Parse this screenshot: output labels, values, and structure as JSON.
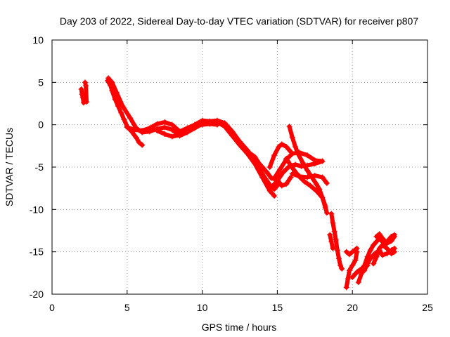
{
  "chart_data": {
    "type": "scatter",
    "title": "Day 203 of 2022, Sidereal Day-to-day VTEC variation (SDTVAR) for receiver p807",
    "xlabel": "GPS time / hours",
    "ylabel": "SDTVAR / TECUs",
    "xlim": [
      0,
      25
    ],
    "ylim": [
      -20,
      10
    ],
    "xticks": [
      "0",
      "5",
      "10",
      "15",
      "20",
      "25"
    ],
    "yticks": [
      "10",
      "5",
      "0",
      "-5",
      "-10",
      "-15",
      "-20"
    ],
    "grid": true,
    "marker": "plus",
    "color": "#ff0000",
    "series": [
      {
        "segments": [
          [
            [
              1.95,
              4.2
            ],
            [
              2.0,
              3.6
            ],
            [
              2.05,
              3.2
            ],
            [
              2.1,
              2.6
            ]
          ],
          [
            [
              2.2,
              5.0
            ],
            [
              2.25,
              4.6
            ],
            [
              2.3,
              2.7
            ]
          ],
          [
            [
              3.7,
              5.2
            ],
            [
              3.9,
              4.6
            ],
            [
              4.0,
              4.0
            ],
            [
              4.2,
              3.0
            ],
            [
              4.4,
              2.2
            ],
            [
              4.6,
              1.4
            ],
            [
              4.8,
              0.6
            ],
            [
              5.0,
              -0.2
            ],
            [
              5.3,
              -0.8
            ],
            [
              5.6,
              -1.5
            ],
            [
              5.8,
              -2.1
            ],
            [
              6.0,
              -2.4
            ]
          ],
          [
            [
              3.75,
              5.5
            ],
            [
              4.0,
              5.0
            ],
            [
              4.3,
              3.8
            ],
            [
              4.7,
              2.2
            ],
            [
              5.2,
              0.8
            ],
            [
              5.6,
              -0.4
            ],
            [
              6.0,
              -0.9
            ],
            [
              6.5,
              -0.8
            ],
            [
              7.0,
              -0.5
            ],
            [
              7.5,
              -0.3
            ],
            [
              8.0,
              -0.6
            ],
            [
              8.5,
              -1.3
            ],
            [
              9.0,
              -0.9
            ],
            [
              9.5,
              -0.4
            ],
            [
              10.0,
              0.1
            ],
            [
              10.5,
              0.4
            ],
            [
              11.0,
              0.3
            ],
            [
              11.5,
              -0.2
            ],
            [
              12.0,
              -1.3
            ],
            [
              12.5,
              -2.4
            ],
            [
              13.0,
              -3.4
            ],
            [
              13.5,
              -4.6
            ],
            [
              14.0,
              -6.2
            ],
            [
              14.5,
              -7.8
            ],
            [
              14.8,
              -8.4
            ]
          ],
          [
            [
              5.0,
              -0.3
            ],
            [
              5.5,
              -0.6
            ],
            [
              6.0,
              -0.7
            ],
            [
              6.5,
              -0.4
            ],
            [
              7.0,
              0.1
            ],
            [
              7.5,
              0.3
            ],
            [
              8.0,
              0.0
            ],
            [
              8.5,
              -0.8
            ],
            [
              9.0,
              -0.4
            ],
            [
              9.5,
              0.0
            ],
            [
              10.0,
              0.5
            ],
            [
              10.5,
              0.4
            ],
            [
              11.0,
              0.5
            ],
            [
              11.5,
              0.2
            ],
            [
              12.0,
              -0.8
            ],
            [
              12.5,
              -2.0
            ],
            [
              13.0,
              -3.0
            ],
            [
              13.5,
              -4.2
            ],
            [
              14.0,
              -5.8
            ],
            [
              14.5,
              -7.1
            ],
            [
              14.8,
              -7.6
            ],
            [
              15.0,
              -7.2
            ]
          ],
          [
            [
              7.0,
              -0.7
            ],
            [
              7.5,
              -1.1
            ],
            [
              8.0,
              -1.4
            ],
            [
              8.5,
              -1.2
            ],
            [
              9.0,
              -0.6
            ],
            [
              9.5,
              -0.2
            ],
            [
              10.0,
              0.0
            ],
            [
              10.5,
              0.1
            ],
            [
              11.0,
              0.0
            ]
          ],
          [
            [
              13.2,
              -3.4
            ],
            [
              13.5,
              -3.8
            ],
            [
              13.8,
              -4.6
            ],
            [
              14.0,
              -5.0
            ],
            [
              14.3,
              -5.6
            ],
            [
              14.6,
              -6.3
            ],
            [
              14.8,
              -6.4
            ],
            [
              15.0,
              -6.0
            ]
          ],
          [
            [
              14.6,
              -7.4
            ],
            [
              15.0,
              -6.6
            ],
            [
              15.4,
              -5.6
            ],
            [
              15.8,
              -4.9
            ],
            [
              16.2,
              -4.7
            ],
            [
              16.6,
              -4.9
            ],
            [
              17.0,
              -4.8
            ],
            [
              17.5,
              -4.6
            ],
            [
              18.0,
              -4.3
            ]
          ],
          [
            [
              14.8,
              -6.3
            ],
            [
              15.2,
              -5.2
            ],
            [
              15.6,
              -4.1
            ],
            [
              16.0,
              -3.4
            ],
            [
              16.5,
              -3.3
            ],
            [
              17.0,
              -3.6
            ],
            [
              17.5,
              -4.2
            ],
            [
              18.0,
              -4.3
            ]
          ],
          [
            [
              14.5,
              -5.0
            ],
            [
              14.8,
              -3.6
            ],
            [
              15.1,
              -2.6
            ],
            [
              15.3,
              -2.3
            ],
            [
              15.6,
              -2.6
            ],
            [
              15.9,
              -3.2
            ]
          ],
          [
            [
              15.0,
              -6.5
            ],
            [
              15.3,
              -7.2
            ],
            [
              15.6,
              -7.0
            ],
            [
              15.9,
              -6.2
            ]
          ],
          [
            [
              15.8,
              -0.2
            ],
            [
              16.0,
              -1.5
            ],
            [
              16.2,
              -2.6
            ],
            [
              16.4,
              -3.5
            ],
            [
              16.7,
              -4.5
            ],
            [
              17.0,
              -5.4
            ],
            [
              17.3,
              -6.2
            ],
            [
              17.6,
              -7.0
            ],
            [
              17.8,
              -7.6
            ],
            [
              18.0,
              -8.6
            ],
            [
              18.2,
              -9.8
            ],
            [
              18.3,
              -10.4
            ]
          ],
          [
            [
              15.6,
              -4.0
            ],
            [
              16.0,
              -5.1
            ],
            [
              16.4,
              -6.0
            ],
            [
              16.8,
              -6.7
            ],
            [
              17.2,
              -7.2
            ],
            [
              17.6,
              -7.8
            ],
            [
              18.0,
              -8.6
            ],
            [
              18.2,
              -9.6
            ]
          ],
          [
            [
              16.0,
              -5.8
            ],
            [
              16.5,
              -6.1
            ],
            [
              17.0,
              -6.2
            ],
            [
              17.5,
              -6.0
            ],
            [
              18.0,
              -6.2
            ],
            [
              18.3,
              -6.9
            ]
          ],
          [
            [
              18.6,
              -10.5
            ],
            [
              18.7,
              -11.6
            ],
            [
              18.8,
              -12.6
            ],
            [
              18.9,
              -13.6
            ],
            [
              19.0,
              -14.8
            ],
            [
              19.1,
              -15.8
            ],
            [
              19.2,
              -16.6
            ],
            [
              19.3,
              -17.0
            ]
          ],
          [
            [
              18.5,
              -13.0
            ],
            [
              18.6,
              -13.8
            ],
            [
              18.7,
              -14.6
            ]
          ],
          [
            [
              19.6,
              -19.2
            ],
            [
              19.7,
              -18.2
            ],
            [
              19.8,
              -17.2
            ],
            [
              20.0,
              -16.6
            ],
            [
              20.2,
              -16.0
            ],
            [
              20.3,
              -15.0
            ]
          ],
          [
            [
              19.6,
              -15.0
            ],
            [
              19.8,
              -15.3
            ],
            [
              20.0,
              -15.0
            ],
            [
              20.3,
              -14.6
            ]
          ],
          [
            [
              20.0,
              -18.0
            ],
            [
              20.3,
              -17.4
            ],
            [
              20.6,
              -17.0
            ],
            [
              21.0,
              -16.6
            ]
          ],
          [
            [
              20.4,
              -18.6
            ],
            [
              20.6,
              -17.6
            ],
            [
              20.8,
              -16.6
            ],
            [
              21.0,
              -15.6
            ],
            [
              21.2,
              -14.8
            ],
            [
              21.4,
              -14.2
            ],
            [
              21.6,
              -13.8
            ],
            [
              21.8,
              -13.4
            ],
            [
              22.0,
              -13.8
            ],
            [
              22.2,
              -14.0
            ],
            [
              22.4,
              -13.6
            ],
            [
              22.6,
              -13.2
            ],
            [
              22.8,
              -13.0
            ]
          ],
          [
            [
              20.8,
              -17.2
            ],
            [
              21.0,
              -16.4
            ],
            [
              21.2,
              -15.8
            ],
            [
              21.5,
              -15.2
            ],
            [
              21.8,
              -14.8
            ],
            [
              22.0,
              -15.4
            ],
            [
              22.3,
              -15.2
            ],
            [
              22.6,
              -14.8
            ],
            [
              22.8,
              -14.6
            ]
          ],
          [
            [
              21.4,
              -16.4
            ],
            [
              21.6,
              -15.6
            ],
            [
              21.8,
              -14.6
            ],
            [
              22.0,
              -14.2
            ],
            [
              22.3,
              -14.6
            ],
            [
              22.6,
              -15.2
            ],
            [
              22.8,
              -15.0
            ]
          ],
          [
            [
              21.6,
              -13.2
            ],
            [
              21.8,
              -12.9
            ],
            [
              22.0,
              -13.4
            ],
            [
              22.3,
              -14.0
            ],
            [
              22.6,
              -13.7
            ],
            [
              22.8,
              -13.2
            ]
          ]
        ]
      }
    ]
  }
}
